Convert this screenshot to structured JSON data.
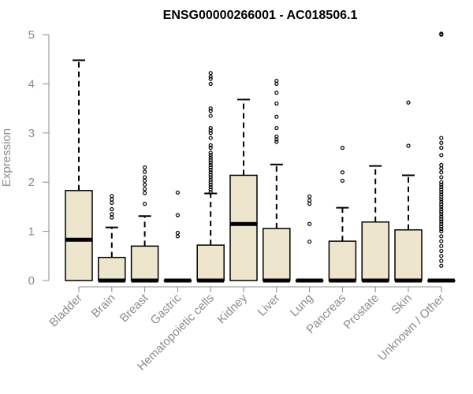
{
  "chart_data": {
    "type": "boxplot",
    "title": "ENSG00000266001 - AC018506.1",
    "ylabel": "Expression",
    "xlabel": "",
    "ylim": [
      0,
      5
    ],
    "yticks": [
      0,
      1,
      2,
      3,
      4,
      5
    ],
    "grid": false,
    "categories": [
      "Bladder",
      "Brain",
      "Breast",
      "Gastric",
      "Hematopoietic cells",
      "Kidney",
      "Liver",
      "Lung",
      "Pancreas",
      "Prostate",
      "Skin",
      "Unknown / Other"
    ],
    "boxes": [
      {
        "category": "Bladder",
        "whisker_low": 0,
        "q1": 0,
        "median": 0.83,
        "q3": 1.83,
        "whisker_high": 4.48,
        "outliers": []
      },
      {
        "category": "Brain",
        "whisker_low": 0,
        "q1": 0,
        "median": 0,
        "q3": 0.47,
        "whisker_high": 1.08,
        "outliers": [
          1.28,
          1.35,
          1.45,
          1.58,
          1.65,
          1.72
        ]
      },
      {
        "category": "Breast",
        "whisker_low": 0,
        "q1": 0,
        "median": 0,
        "q3": 0.7,
        "whisker_high": 1.31,
        "outliers": [
          1.56,
          1.78,
          1.86,
          1.95,
          2.03,
          2.1,
          2.21,
          2.3
        ]
      },
      {
        "category": "Gastric",
        "whisker_low": 0,
        "q1": 0,
        "median": 0,
        "q3": 0,
        "whisker_high": 0,
        "outliers": [
          0.9,
          0.97,
          1.33,
          1.79
        ]
      },
      {
        "category": "Hematopoietic cells",
        "whisker_low": 0,
        "q1": 0,
        "median": 0,
        "q3": 0.72,
        "whisker_high": 1.77,
        "outliers": [
          1.8,
          1.85,
          1.9,
          1.95,
          2.0,
          2.05,
          2.1,
          2.15,
          2.2,
          2.25,
          2.3,
          2.35,
          2.4,
          2.45,
          2.5,
          2.55,
          2.6,
          2.7,
          2.75,
          2.9,
          3.0,
          3.05,
          3.1,
          3.35,
          3.45,
          3.5,
          4.0,
          4.1,
          4.15,
          4.22
        ]
      },
      {
        "category": "Kidney",
        "whisker_low": 0,
        "q1": 0,
        "median": 1.15,
        "q3": 2.14,
        "whisker_high": 3.68,
        "outliers": []
      },
      {
        "category": "Liver",
        "whisker_low": 0,
        "q1": 0,
        "median": 0,
        "q3": 1.06,
        "whisker_high": 2.36,
        "outliers": [
          2.82,
          2.87,
          2.93,
          3.1,
          3.33,
          3.6,
          3.82,
          4.0,
          4.06
        ]
      },
      {
        "category": "Lung",
        "whisker_low": 0,
        "q1": 0,
        "median": 0,
        "q3": 0,
        "whisker_high": 0,
        "outliers": [
          0.79,
          1.15,
          1.56,
          1.63,
          1.71
        ]
      },
      {
        "category": "Pancreas",
        "whisker_low": 0,
        "q1": 0,
        "median": 0,
        "q3": 0.8,
        "whisker_high": 1.48,
        "outliers": [
          2.03,
          2.2,
          2.7
        ]
      },
      {
        "category": "Prostate",
        "whisker_low": 0,
        "q1": 0,
        "median": 0,
        "q3": 1.19,
        "whisker_high": 2.33,
        "outliers": []
      },
      {
        "category": "Skin",
        "whisker_low": 0,
        "q1": 0,
        "median": 0,
        "q3": 1.03,
        "whisker_high": 2.14,
        "outliers": [
          2.74,
          3.62
        ]
      },
      {
        "category": "Unknown / Other",
        "whisker_low": 0,
        "q1": 0,
        "median": 0,
        "q3": 0,
        "whisker_high": 0,
        "outliers": [
          0.3,
          0.4,
          0.5,
          0.6,
          0.7,
          0.8,
          0.9,
          1.0,
          1.05,
          1.1,
          1.15,
          1.2,
          1.25,
          1.3,
          1.35,
          1.4,
          1.45,
          1.5,
          1.55,
          1.6,
          1.65,
          1.7,
          1.75,
          1.8,
          1.85,
          1.9,
          1.95,
          2.0,
          2.1,
          2.2,
          2.28,
          2.35,
          2.55,
          2.7,
          2.8,
          2.9,
          5.0,
          5.02
        ]
      }
    ]
  },
  "colors": {
    "box_fill": "#ede6cd",
    "box_stroke": "#000000",
    "axis": "#8c8c8c",
    "title": "#000000"
  }
}
